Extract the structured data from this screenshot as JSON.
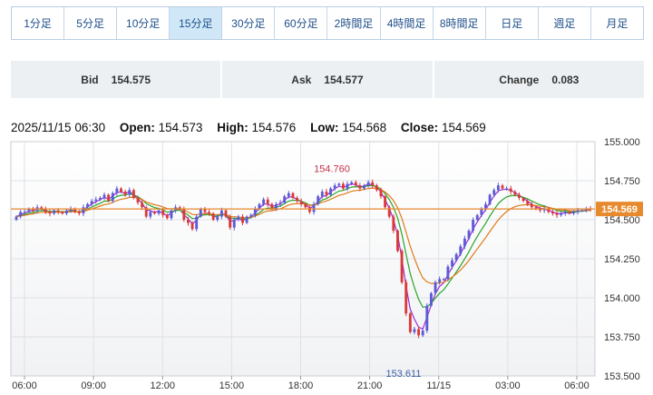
{
  "timeframes": [
    {
      "label": "1分足"
    },
    {
      "label": "5分足"
    },
    {
      "label": "10分足"
    },
    {
      "label": "15分足",
      "active": true
    },
    {
      "label": "30分足"
    },
    {
      "label": "60分足"
    },
    {
      "label": "2時間足"
    },
    {
      "label": "4時間足"
    },
    {
      "label": "8時間足"
    },
    {
      "label": "日足"
    },
    {
      "label": "週足"
    },
    {
      "label": "月足"
    }
  ],
  "quote": {
    "bid_label": "Bid",
    "bid": "154.575",
    "ask_label": "Ask",
    "ask": "154.577",
    "change_label": "Change",
    "change": "0.083"
  },
  "ohlc": {
    "datetime": "2025/11/15 06:30",
    "open_label": "Open:",
    "open": "154.573",
    "high_label": "High:",
    "high": "154.576",
    "low_label": "Low:",
    "low": "154.568",
    "close_label": "Close:",
    "close": "154.569"
  },
  "chart_data": {
    "type": "candlestick",
    "interval": "15分足",
    "ylim": [
      153.5,
      155.0
    ],
    "yticks": [
      "155.000",
      "154.750",
      "154.500",
      "154.250",
      "154.000",
      "153.750",
      "153.500"
    ],
    "xticks": [
      "06:00",
      "09:00",
      "12:00",
      "15:00",
      "18:00",
      "21:00",
      "11/15",
      "03:00",
      "06:00"
    ],
    "last_price": 154.569,
    "last_price_label": "154.569",
    "annotations": [
      {
        "text": "154.760",
        "value": 154.76
      },
      {
        "text": "153.611",
        "value": 153.611
      }
    ],
    "colors": {
      "up": "#5b5bd6",
      "down": "#d93a3a",
      "ma_short": "#9b2fd0",
      "ma_mid": "#28a528",
      "ma_long": "#e07a1a",
      "price_line": "#e78a2e"
    },
    "closes": [
      154.52,
      154.55,
      154.55,
      154.57,
      154.56,
      154.58,
      154.57,
      154.55,
      154.54,
      154.56,
      154.55,
      154.54,
      154.56,
      154.57,
      154.55,
      154.54,
      154.58,
      154.6,
      154.62,
      154.63,
      154.64,
      154.66,
      154.62,
      154.67,
      154.7,
      154.68,
      154.66,
      154.69,
      154.64,
      154.61,
      154.58,
      154.52,
      154.55,
      154.54,
      154.56,
      154.53,
      154.51,
      154.56,
      154.58,
      154.57,
      154.5,
      154.48,
      154.44,
      154.52,
      154.57,
      154.55,
      154.54,
      154.5,
      154.52,
      154.56,
      154.52,
      154.45,
      154.5,
      154.52,
      154.48,
      154.52,
      154.53,
      154.57,
      154.6,
      154.63,
      154.6,
      154.57,
      154.6,
      154.61,
      154.65,
      154.67,
      154.64,
      154.62,
      154.6,
      154.58,
      154.55,
      154.6,
      154.65,
      154.68,
      154.66,
      154.7,
      154.72,
      154.73,
      154.7,
      154.73,
      154.74,
      154.72,
      154.7,
      154.72,
      154.74,
      154.72,
      154.69,
      154.65,
      154.58,
      154.52,
      154.43,
      154.3,
      154.1,
      153.9,
      153.78,
      153.8,
      153.76,
      153.79,
      153.95,
      154.03,
      154.1,
      154.12,
      154.12,
      154.2,
      154.24,
      154.28,
      154.33,
      154.38,
      154.43,
      154.5,
      154.53,
      154.57,
      154.6,
      154.66,
      154.69,
      154.72,
      154.7,
      154.7,
      154.68,
      154.66,
      154.64,
      154.62,
      154.6,
      154.58,
      154.57,
      154.56,
      154.57,
      154.55,
      154.54,
      154.53,
      154.54,
      154.55,
      154.54,
      154.55,
      154.56,
      154.56,
      154.57,
      154.569
    ]
  }
}
